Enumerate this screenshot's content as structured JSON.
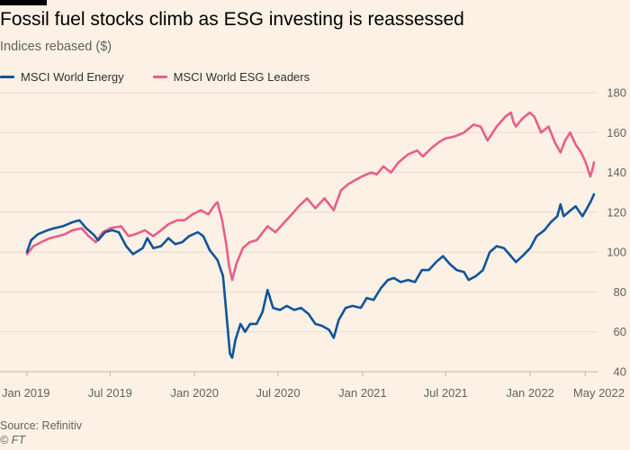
{
  "header": {
    "title": "Fossil fuel stocks climb as ESG investing is reassessed",
    "subtitle": "Indices rebased ($)"
  },
  "footer": {
    "source": "Source: Refinitiv",
    "credit": "© FT"
  },
  "colors": {
    "background": "#fdf1e5",
    "energy": "#0f5499",
    "esg": "#e95d8c",
    "gridline": "#e6d9ce",
    "axis_text": "#66605c",
    "top_bar": "#000000"
  },
  "chart_data": {
    "type": "line",
    "ylabel": "",
    "xlabel": "",
    "ylim": [
      40,
      180
    ],
    "yticks": [
      40,
      60,
      80,
      100,
      120,
      140,
      160,
      180
    ],
    "y_axis_side": "right",
    "xlim": [
      "2019-01-01",
      "2022-05-20"
    ],
    "xticks": [
      {
        "date": "2019-01-01",
        "label": "Jan 2019"
      },
      {
        "date": "2019-07-01",
        "label": "Jul 2019"
      },
      {
        "date": "2020-01-01",
        "label": "Jan 2020"
      },
      {
        "date": "2020-07-01",
        "label": "Jul 2020"
      },
      {
        "date": "2021-01-01",
        "label": "Jan 2021"
      },
      {
        "date": "2021-07-01",
        "label": "Jul 2021"
      },
      {
        "date": "2022-01-01",
        "label": "Jan 2022"
      },
      {
        "date": "2022-05-01",
        "label": "May 2022"
      }
    ],
    "grid": true,
    "legend_position": "top-left",
    "series": [
      {
        "name": "MSCI World Energy",
        "color": "#0f5499",
        "points": [
          [
            "2019-01-01",
            100
          ],
          [
            "2019-01-10",
            106
          ],
          [
            "2019-01-25",
            109
          ],
          [
            "2019-02-15",
            111
          ],
          [
            "2019-03-01",
            112
          ],
          [
            "2019-03-20",
            113
          ],
          [
            "2019-04-10",
            115
          ],
          [
            "2019-04-25",
            116
          ],
          [
            "2019-05-10",
            112
          ],
          [
            "2019-05-25",
            109
          ],
          [
            "2019-06-05",
            106
          ],
          [
            "2019-06-20",
            110
          ],
          [
            "2019-07-05",
            111
          ],
          [
            "2019-07-20",
            110
          ],
          [
            "2019-08-05",
            103
          ],
          [
            "2019-08-20",
            99
          ],
          [
            "2019-09-10",
            102
          ],
          [
            "2019-09-20",
            107
          ],
          [
            "2019-10-03",
            102
          ],
          [
            "2019-10-20",
            103
          ],
          [
            "2019-11-05",
            107
          ],
          [
            "2019-11-20",
            104
          ],
          [
            "2019-12-05",
            105
          ],
          [
            "2019-12-20",
            108
          ],
          [
            "2020-01-08",
            110
          ],
          [
            "2020-01-20",
            108
          ],
          [
            "2020-02-03",
            101
          ],
          [
            "2020-02-20",
            96
          ],
          [
            "2020-03-03",
            88
          ],
          [
            "2020-03-10",
            70
          ],
          [
            "2020-03-18",
            49
          ],
          [
            "2020-03-23",
            47
          ],
          [
            "2020-03-30",
            56
          ],
          [
            "2020-04-10",
            64
          ],
          [
            "2020-04-20",
            60
          ],
          [
            "2020-05-01",
            64
          ],
          [
            "2020-05-15",
            64
          ],
          [
            "2020-05-28",
            70
          ],
          [
            "2020-06-08",
            81
          ],
          [
            "2020-06-20",
            72
          ],
          [
            "2020-07-05",
            71
          ],
          [
            "2020-07-20",
            73
          ],
          [
            "2020-08-05",
            71
          ],
          [
            "2020-08-20",
            72
          ],
          [
            "2020-09-05",
            69
          ],
          [
            "2020-09-20",
            64
          ],
          [
            "2020-10-05",
            63
          ],
          [
            "2020-10-20",
            61
          ],
          [
            "2020-10-30",
            57
          ],
          [
            "2020-11-10",
            66
          ],
          [
            "2020-11-25",
            72
          ],
          [
            "2020-12-10",
            73
          ],
          [
            "2020-12-28",
            72
          ],
          [
            "2021-01-10",
            77
          ],
          [
            "2021-01-25",
            76
          ],
          [
            "2021-02-10",
            82
          ],
          [
            "2021-02-25",
            86
          ],
          [
            "2021-03-10",
            87
          ],
          [
            "2021-03-25",
            85
          ],
          [
            "2021-04-10",
            86
          ],
          [
            "2021-04-25",
            85
          ],
          [
            "2021-05-10",
            91
          ],
          [
            "2021-05-25",
            91
          ],
          [
            "2021-06-10",
            95
          ],
          [
            "2021-06-25",
            98
          ],
          [
            "2021-07-10",
            94
          ],
          [
            "2021-07-25",
            91
          ],
          [
            "2021-08-10",
            90
          ],
          [
            "2021-08-20",
            86
          ],
          [
            "2021-09-05",
            88
          ],
          [
            "2021-09-20",
            91
          ],
          [
            "2021-10-05",
            100
          ],
          [
            "2021-10-20",
            103
          ],
          [
            "2021-11-05",
            102
          ],
          [
            "2021-11-20",
            98
          ],
          [
            "2021-12-01",
            95
          ],
          [
            "2021-12-15",
            98
          ],
          [
            "2022-01-01",
            102
          ],
          [
            "2022-01-15",
            108
          ],
          [
            "2022-02-01",
            111
          ],
          [
            "2022-02-15",
            115
          ],
          [
            "2022-03-01",
            118
          ],
          [
            "2022-03-08",
            124
          ],
          [
            "2022-03-15",
            118
          ],
          [
            "2022-03-30",
            121
          ],
          [
            "2022-04-10",
            123
          ],
          [
            "2022-04-25",
            118
          ],
          [
            "2022-05-05",
            122
          ],
          [
            "2022-05-12",
            125
          ],
          [
            "2022-05-20",
            129
          ]
        ]
      },
      {
        "name": "MSCI World ESG Leaders",
        "color": "#e95d8c",
        "points": [
          [
            "2019-01-01",
            99
          ],
          [
            "2019-01-15",
            103
          ],
          [
            "2019-02-01",
            105
          ],
          [
            "2019-02-20",
            107
          ],
          [
            "2019-03-10",
            108
          ],
          [
            "2019-03-25",
            109
          ],
          [
            "2019-04-10",
            111
          ],
          [
            "2019-04-30",
            112
          ],
          [
            "2019-05-15",
            108
          ],
          [
            "2019-05-31",
            105
          ],
          [
            "2019-06-15",
            110
          ],
          [
            "2019-07-01",
            112
          ],
          [
            "2019-07-25",
            113
          ],
          [
            "2019-08-10",
            108
          ],
          [
            "2019-08-25",
            109
          ],
          [
            "2019-09-15",
            111
          ],
          [
            "2019-10-03",
            108
          ],
          [
            "2019-10-20",
            111
          ],
          [
            "2019-11-05",
            114
          ],
          [
            "2019-11-25",
            116
          ],
          [
            "2019-12-10",
            116
          ],
          [
            "2019-12-28",
            119
          ],
          [
            "2020-01-15",
            121
          ],
          [
            "2020-01-31",
            119
          ],
          [
            "2020-02-15",
            124
          ],
          [
            "2020-02-20",
            125
          ],
          [
            "2020-03-01",
            116
          ],
          [
            "2020-03-10",
            104
          ],
          [
            "2020-03-16",
            93
          ],
          [
            "2020-03-23",
            86
          ],
          [
            "2020-04-01",
            94
          ],
          [
            "2020-04-15",
            102
          ],
          [
            "2020-04-30",
            105
          ],
          [
            "2020-05-15",
            106
          ],
          [
            "2020-06-08",
            113
          ],
          [
            "2020-06-25",
            110
          ],
          [
            "2020-07-15",
            115
          ],
          [
            "2020-07-31",
            119
          ],
          [
            "2020-08-15",
            123
          ],
          [
            "2020-09-02",
            127
          ],
          [
            "2020-09-20",
            122
          ],
          [
            "2020-10-10",
            127
          ],
          [
            "2020-10-30",
            121
          ],
          [
            "2020-11-15",
            131
          ],
          [
            "2020-11-30",
            134
          ],
          [
            "2020-12-15",
            136
          ],
          [
            "2020-12-31",
            138
          ],
          [
            "2021-01-20",
            140
          ],
          [
            "2021-02-01",
            139
          ],
          [
            "2021-02-15",
            143
          ],
          [
            "2021-03-04",
            140
          ],
          [
            "2021-03-20",
            145
          ],
          [
            "2021-04-10",
            149
          ],
          [
            "2021-04-30",
            151
          ],
          [
            "2021-05-12",
            148
          ],
          [
            "2021-05-30",
            152
          ],
          [
            "2021-06-15",
            155
          ],
          [
            "2021-06-30",
            157
          ],
          [
            "2021-07-20",
            158
          ],
          [
            "2021-08-10",
            160
          ],
          [
            "2021-08-31",
            164
          ],
          [
            "2021-09-15",
            163
          ],
          [
            "2021-09-30",
            156
          ],
          [
            "2021-10-20",
            163
          ],
          [
            "2021-11-08",
            168
          ],
          [
            "2021-11-20",
            170
          ],
          [
            "2021-11-26",
            165
          ],
          [
            "2021-12-01",
            163
          ],
          [
            "2021-12-15",
            167
          ],
          [
            "2021-12-31",
            170
          ],
          [
            "2022-01-10",
            168
          ],
          [
            "2022-01-25",
            160
          ],
          [
            "2022-02-10",
            163
          ],
          [
            "2022-02-24",
            155
          ],
          [
            "2022-03-08",
            150
          ],
          [
            "2022-03-18",
            156
          ],
          [
            "2022-03-29",
            160
          ],
          [
            "2022-04-10",
            154
          ],
          [
            "2022-04-22",
            150
          ],
          [
            "2022-05-02",
            145
          ],
          [
            "2022-05-09",
            140
          ],
          [
            "2022-05-12",
            138
          ],
          [
            "2022-05-16",
            141
          ],
          [
            "2022-05-20",
            145
          ]
        ]
      }
    ]
  }
}
